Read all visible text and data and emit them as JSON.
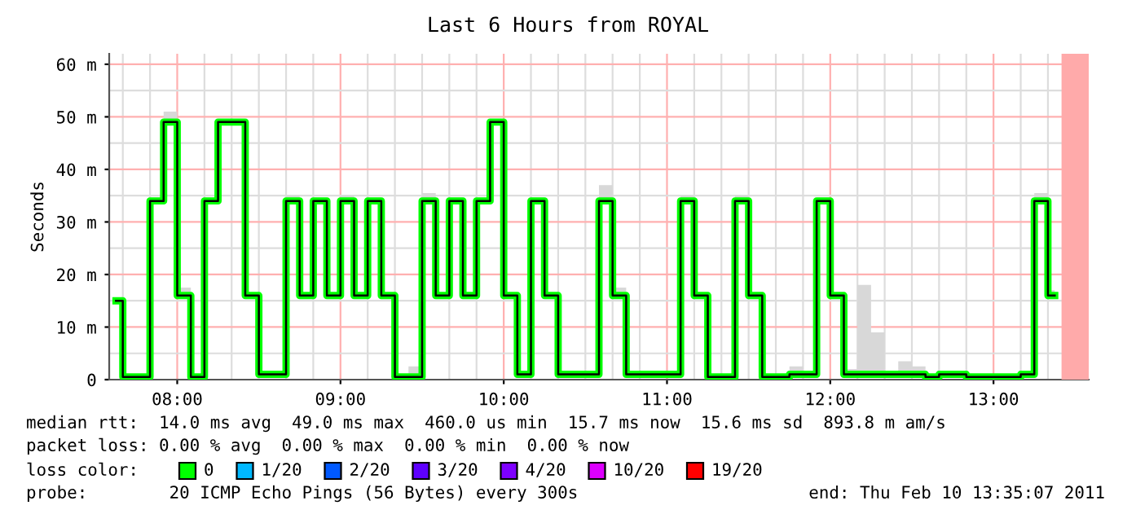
{
  "chart_data": {
    "type": "step",
    "title": "Last 6 Hours from ROYAL",
    "ylabel": "Seconds",
    "legend_title": "loss color:",
    "legend": "bottom",
    "grid": true,
    "x": [
      7.625,
      7.7083,
      7.7917,
      7.875,
      7.9583,
      8.0417,
      8.125,
      8.2083,
      8.2917,
      8.375,
      8.4583,
      8.5417,
      8.625,
      8.7083,
      8.7917,
      8.875,
      8.9583,
      9.0417,
      9.125,
      9.2083,
      9.2917,
      9.375,
      9.4583,
      9.5417,
      9.625,
      9.7083,
      9.7917,
      9.875,
      9.9583,
      10.0417,
      10.125,
      10.2083,
      10.2917,
      10.375,
      10.4583,
      10.5417,
      10.625,
      10.7083,
      10.7917,
      10.875,
      10.9583,
      11.0417,
      11.125,
      11.2083,
      11.2917,
      11.375,
      11.4583,
      11.5417,
      11.625,
      11.7083,
      11.7917,
      11.875,
      11.9583,
      12.0417,
      12.125,
      12.2083,
      12.2917,
      12.375,
      12.4583,
      12.5417,
      12.625,
      12.7083,
      12.7917,
      12.875,
      12.9583,
      13.0417,
      13.125,
      13.2083,
      13.2917,
      13.375
    ],
    "series": [
      {
        "name": "0",
        "color": "#00ff00",
        "values": [
          15,
          0.5,
          0.5,
          34,
          49,
          16,
          0.5,
          34,
          49,
          49,
          16,
          1,
          1,
          34,
          16,
          34,
          16,
          34,
          16,
          34,
          16,
          0.5,
          0.5,
          34,
          16,
          34,
          16,
          34,
          49,
          16,
          1,
          34,
          16,
          1,
          1,
          1,
          34,
          16,
          1,
          1,
          1,
          1,
          34,
          16,
          0.5,
          0.5,
          34,
          16,
          0.5,
          0.5,
          1,
          1,
          34,
          16,
          1,
          1,
          1,
          1,
          1,
          1,
          0.5,
          1,
          1,
          0.5,
          0.5,
          0.5,
          0.5,
          1,
          34,
          16
        ],
        "lower": [
          15,
          0.5,
          0.5,
          34,
          49,
          16,
          0.5,
          34,
          49,
          49,
          16,
          1,
          1,
          34,
          16,
          34,
          16,
          34,
          16,
          34,
          16,
          0.5,
          0.5,
          34,
          16,
          34,
          16,
          34,
          49,
          16,
          1,
          34,
          16,
          1,
          1,
          1,
          34,
          16,
          1,
          1,
          1,
          1,
          34,
          16,
          0.5,
          0.5,
          34,
          16,
          0.5,
          0.5,
          1,
          1,
          34,
          16,
          1,
          1,
          1,
          1,
          1,
          1,
          0.5,
          1,
          1,
          0.5,
          0.5,
          0.5,
          0.5,
          1,
          34,
          16
        ],
        "upper": [
          15,
          0.5,
          0.5,
          34,
          51,
          17.5,
          0.5,
          34,
          49,
          49,
          16,
          1,
          1,
          35,
          16,
          34,
          16,
          35,
          16,
          34,
          16,
          0.5,
          2.5,
          35.5,
          16,
          34,
          16,
          34,
          49,
          16,
          1,
          34,
          16.5,
          1,
          1.5,
          1.5,
          37,
          17.5,
          1,
          1,
          1,
          1,
          35,
          16,
          0.5,
          0.5,
          35,
          16,
          0.5,
          0.5,
          2.5,
          1.5,
          34,
          16,
          2,
          18,
          9,
          1,
          3.5,
          2.5,
          1,
          1,
          1.5,
          1,
          1,
          0.5,
          0.5,
          1,
          35.5,
          17
        ]
      },
      {
        "color": "#000000",
        "values": [
          15,
          0.5,
          0.5,
          34,
          49,
          16,
          0.5,
          34,
          49,
          49,
          16,
          1,
          1,
          34,
          16,
          34,
          16,
          34,
          16,
          34,
          16,
          0.5,
          0.5,
          34,
          16,
          34,
          16,
          34,
          49,
          16,
          1,
          34,
          16,
          1,
          1,
          1,
          34,
          16,
          1,
          1,
          1,
          1,
          34,
          16,
          0.5,
          0.5,
          34,
          16,
          0.5,
          0.5,
          1,
          1,
          34,
          16,
          1,
          1,
          1,
          1,
          1,
          1,
          0.5,
          1,
          1,
          0.5,
          0.5,
          0.5,
          0.5,
          1,
          34,
          16
        ]
      },
      {
        "name": "1/20",
        "color": "#00b8ff",
        "values": [
          null,
          null,
          null,
          null,
          null,
          null,
          null,
          null,
          null,
          null,
          null,
          null,
          null,
          null,
          null,
          null,
          null,
          null,
          null,
          null,
          null,
          null,
          null,
          null,
          null,
          null,
          null,
          null,
          null,
          null,
          null,
          null,
          null,
          null,
          null,
          null,
          null,
          null,
          null,
          null,
          null,
          null,
          null,
          null,
          null,
          null,
          null,
          null,
          null,
          null,
          null,
          null,
          null,
          null,
          null,
          null,
          null,
          null,
          null,
          null,
          null,
          null,
          null,
          null,
          null,
          null,
          null,
          null,
          null,
          null
        ]
      },
      {
        "name": "2/20",
        "color": "#0059ff",
        "values": [
          null,
          null,
          null,
          null,
          null,
          null,
          null,
          null,
          null,
          null,
          null,
          null,
          null,
          null,
          null,
          null,
          null,
          null,
          null,
          null,
          null,
          null,
          null,
          null,
          null,
          null,
          null,
          null,
          null,
          null,
          null,
          null,
          null,
          null,
          null,
          null,
          null,
          null,
          null,
          null,
          null,
          null,
          null,
          null,
          null,
          null,
          null,
          null,
          null,
          null,
          null,
          null,
          null,
          null,
          null,
          null,
          null,
          null,
          null,
          null,
          null,
          null,
          null,
          null,
          null,
          null,
          null,
          null,
          null,
          null
        ]
      },
      {
        "name": "3/20",
        "color": "#5e00ff",
        "values": [
          null,
          null,
          null,
          null,
          null,
          null,
          null,
          null,
          null,
          null,
          null,
          null,
          null,
          null,
          null,
          null,
          null,
          null,
          null,
          null,
          null,
          null,
          null,
          null,
          null,
          null,
          null,
          null,
          null,
          null,
          null,
          null,
          null,
          null,
          null,
          null,
          null,
          null,
          null,
          null,
          null,
          null,
          null,
          null,
          null,
          null,
          null,
          null,
          null,
          null,
          null,
          null,
          null,
          null,
          null,
          null,
          null,
          null,
          null,
          null,
          null,
          null,
          null,
          null,
          null,
          null,
          null,
          null,
          null,
          null
        ]
      },
      {
        "name": "4/20",
        "color": "#7e00ff",
        "values": [
          null,
          null,
          null,
          null,
          null,
          null,
          null,
          null,
          null,
          null,
          null,
          null,
          null,
          null,
          null,
          null,
          null,
          null,
          null,
          null,
          null,
          null,
          null,
          null,
          null,
          null,
          null,
          null,
          null,
          null,
          null,
          null,
          null,
          null,
          null,
          null,
          null,
          null,
          null,
          null,
          null,
          null,
          null,
          null,
          null,
          null,
          null,
          null,
          null,
          null,
          null,
          null,
          null,
          null,
          null,
          null,
          null,
          null,
          null,
          null,
          null,
          null,
          null,
          null,
          null,
          null,
          null,
          null,
          null,
          null
        ]
      },
      {
        "name": "10/20",
        "color": "#dd00ff",
        "values": [
          null,
          null,
          null,
          null,
          null,
          null,
          null,
          null,
          null,
          null,
          null,
          null,
          null,
          null,
          null,
          null,
          null,
          null,
          null,
          null,
          null,
          null,
          null,
          null,
          null,
          null,
          null,
          null,
          null,
          null,
          null,
          null,
          null,
          null,
          null,
          null,
          null,
          null,
          null,
          null,
          null,
          null,
          null,
          null,
          null,
          null,
          null,
          null,
          null,
          null,
          null,
          null,
          null,
          null,
          null,
          null,
          null,
          null,
          null,
          null,
          null,
          null,
          null,
          null,
          null,
          null,
          null,
          null,
          null,
          null
        ]
      },
      {
        "name": "19/20",
        "color": "#ff0000",
        "values": [
          null,
          null,
          null,
          null,
          null,
          null,
          null,
          null,
          null,
          null,
          null,
          null,
          null,
          null,
          null,
          null,
          null,
          null,
          null,
          null,
          null,
          null,
          null,
          null,
          null,
          null,
          null,
          null,
          null,
          null,
          null,
          null,
          null,
          null,
          null,
          null,
          null,
          null,
          null,
          null,
          null,
          null,
          null,
          null,
          null,
          null,
          null,
          null,
          null,
          null,
          null,
          null,
          null,
          null,
          null,
          null,
          null,
          null,
          null,
          null,
          null,
          null,
          null,
          null,
          null,
          null,
          null,
          null,
          null,
          null
        ]
      }
    ],
    "bands": [
      {
        "axis": "x",
        "from": 13.4167,
        "to": 13.5833,
        "color": "#ffaaaa"
      }
    ],
    "xlim": [
      7.5833,
      13.5833
    ],
    "xticks": [
      {
        "value": 8,
        "label": "08:00"
      },
      {
        "value": 9,
        "label": "09:00"
      },
      {
        "value": 10,
        "label": "10:00"
      },
      {
        "value": 11,
        "label": "11:00"
      },
      {
        "value": 12,
        "label": "12:00"
      },
      {
        "value": 13,
        "label": "13:00"
      }
    ],
    "ylim": [
      0,
      62
    ],
    "yticks": [
      0,
      {
        "value": 10,
        "label": "10 m"
      },
      {
        "value": 20,
        "label": "20 m"
      },
      {
        "value": 30,
        "label": "30 m"
      },
      {
        "value": 40,
        "label": "40 m"
      },
      {
        "value": 50,
        "label": "50 m"
      },
      {
        "value": 60,
        "label": "60 m"
      }
    ],
    "annotations": [
      "median rtt:  14.0 ms avg  49.0 ms max  460.0 us min  15.7 ms now  15.6 ms sd  893.8 m am/s",
      "packet loss: 0.00 % avg  0.00 % max  0.00 % min  0.00 % now",
      "probe:        20 ICMP Echo Pings (56 Bytes) every 300s",
      "end: Thu Feb 10 13:35:07 2011"
    ]
  }
}
